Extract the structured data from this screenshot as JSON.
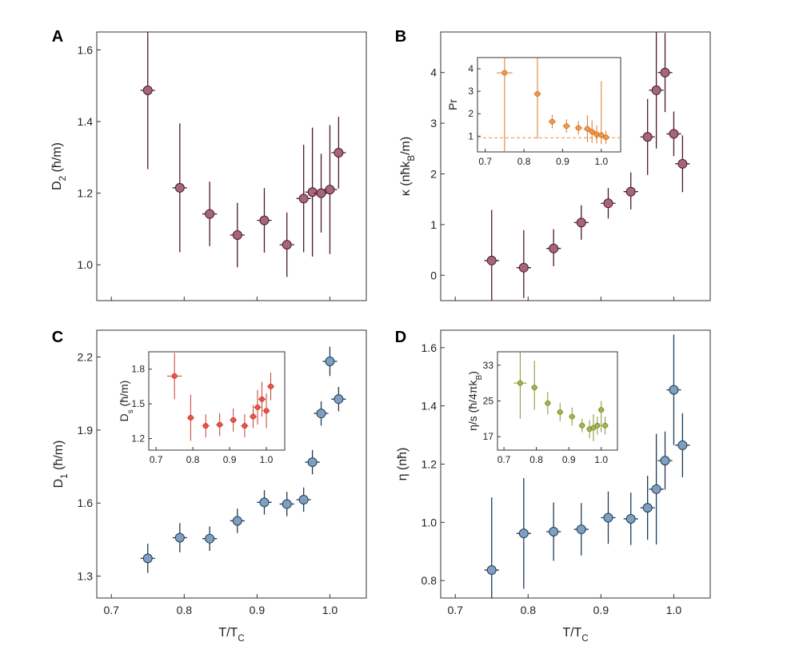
{
  "chart_data": [
    {
      "id": "A",
      "type": "scatter",
      "panel_label": "A",
      "ylabel": "D",
      "ylabel_sub": "2",
      "ylabel_unit": " (ħ/m)",
      "xlabel": "",
      "xlim": [
        0.68,
        1.05
      ],
      "ylim": [
        0.9,
        1.65
      ],
      "yticks": [
        1.0,
        1.2,
        1.4,
        1.6
      ],
      "yticklabels": [
        "1.0",
        "1.2",
        "1.4",
        "1.6"
      ],
      "xticks": [
        0.7,
        0.8,
        0.9,
        1.0
      ],
      "xticklabels": [],
      "color": "#a66679",
      "edge_color": "#4a1a2c",
      "points": [
        {
          "x": 0.75,
          "y": 1.487,
          "xerr": 0.01,
          "yerr_lo": 0.22,
          "yerr_hi": 0.17
        },
        {
          "x": 0.794,
          "y": 1.215,
          "xerr": 0.01,
          "yerr_lo": 0.18,
          "yerr_hi": 0.18
        },
        {
          "x": 0.835,
          "y": 1.142,
          "xerr": 0.01,
          "yerr_lo": 0.09,
          "yerr_hi": 0.09
        },
        {
          "x": 0.873,
          "y": 1.083,
          "xerr": 0.01,
          "yerr_lo": 0.09,
          "yerr_hi": 0.09
        },
        {
          "x": 0.91,
          "y": 1.124,
          "xerr": 0.01,
          "yerr_lo": 0.09,
          "yerr_hi": 0.09
        },
        {
          "x": 0.941,
          "y": 1.056,
          "xerr": 0.01,
          "yerr_lo": 0.09,
          "yerr_hi": 0.09
        },
        {
          "x": 0.964,
          "y": 1.185,
          "xerr": 0.01,
          "yerr_lo": 0.15,
          "yerr_hi": 0.15
        },
        {
          "x": 0.976,
          "y": 1.203,
          "xerr": 0.01,
          "yerr_lo": 0.18,
          "yerr_hi": 0.18
        },
        {
          "x": 0.988,
          "y": 1.2,
          "xerr": 0.01,
          "yerr_lo": 0.11,
          "yerr_hi": 0.11
        },
        {
          "x": 1.0,
          "y": 1.21,
          "xerr": 0.01,
          "yerr_lo": 0.18,
          "yerr_hi": 0.18
        },
        {
          "x": 1.012,
          "y": 1.313,
          "xerr": 0.01,
          "yerr_lo": 0.1,
          "yerr_hi": 0.1
        }
      ]
    },
    {
      "id": "B",
      "type": "scatter",
      "panel_label": "B",
      "ylabel": "κ (nħk",
      "ylabel_sub": "B",
      "ylabel_unit": "/m)",
      "xlabel": "",
      "xlim": [
        0.68,
        1.05
      ],
      "ylim": [
        -0.5,
        4.8
      ],
      "yticks": [
        0,
        1,
        2,
        3,
        4
      ],
      "yticklabels": [
        "0",
        "1",
        "2",
        "3",
        "4"
      ],
      "xticks": [
        0.7,
        0.8,
        0.9,
        1.0
      ],
      "xticklabels": [],
      "color": "#a66679",
      "edge_color": "#4a1a2c",
      "points": [
        {
          "x": 0.75,
          "y": 0.29,
          "xerr": 0.01,
          "yerr_lo": 0.8,
          "yerr_hi": 1.0
        },
        {
          "x": 0.794,
          "y": 0.15,
          "xerr": 0.01,
          "yerr_lo": 0.6,
          "yerr_hi": 0.74
        },
        {
          "x": 0.835,
          "y": 0.53,
          "xerr": 0.01,
          "yerr_lo": 0.35,
          "yerr_hi": 0.38
        },
        {
          "x": 0.873,
          "y": 1.04,
          "xerr": 0.01,
          "yerr_lo": 0.34,
          "yerr_hi": 0.34
        },
        {
          "x": 0.91,
          "y": 1.42,
          "xerr": 0.01,
          "yerr_lo": 0.3,
          "yerr_hi": 0.3
        },
        {
          "x": 0.941,
          "y": 1.65,
          "xerr": 0.01,
          "yerr_lo": 0.35,
          "yerr_hi": 0.38
        },
        {
          "x": 0.964,
          "y": 2.73,
          "xerr": 0.01,
          "yerr_lo": 0.75,
          "yerr_hi": 0.75
        },
        {
          "x": 0.976,
          "y": 3.65,
          "xerr": 0.01,
          "yerr_lo": 1.15,
          "yerr_hi": 1.15
        },
        {
          "x": 0.988,
          "y": 4.0,
          "xerr": 0.01,
          "yerr_lo": 0.78,
          "yerr_hi": 0.78
        },
        {
          "x": 1.0,
          "y": 2.79,
          "xerr": 0.01,
          "yerr_lo": 0.44,
          "yerr_hi": 0.44
        },
        {
          "x": 1.012,
          "y": 2.2,
          "xerr": 0.01,
          "yerr_lo": 0.56,
          "yerr_hi": 0.56
        }
      ],
      "inset": {
        "ylabel": "Pr",
        "xlim": [
          0.68,
          1.05
        ],
        "ylim": [
          0.3,
          4.5
        ],
        "yticks": [
          1,
          2,
          3,
          4
        ],
        "yticklabels": [
          "1",
          "2",
          "3",
          "4"
        ],
        "xticks": [
          0.7,
          0.8,
          0.9,
          1.0
        ],
        "xticklabels": [
          "0.7",
          "0.8",
          "0.9",
          "1.0"
        ],
        "color": "#ef9a4a",
        "edge_color": "#d4782b",
        "hline": 0.93,
        "points": [
          {
            "x": 0.75,
            "y": 3.82,
            "xerr": 0.02,
            "yerr_lo": 3.6,
            "yerr_hi": 0.7
          },
          {
            "x": 0.835,
            "y": 2.88,
            "xerr": 0.01,
            "yerr_lo": 2.0,
            "yerr_hi": 1.6
          },
          {
            "x": 0.873,
            "y": 1.65,
            "xerr": 0.01,
            "yerr_lo": 0.3,
            "yerr_hi": 0.3
          },
          {
            "x": 0.91,
            "y": 1.45,
            "xerr": 0.01,
            "yerr_lo": 0.3,
            "yerr_hi": 0.3
          },
          {
            "x": 0.941,
            "y": 1.37,
            "xerr": 0.01,
            "yerr_lo": 0.3,
            "yerr_hi": 0.3
          },
          {
            "x": 0.964,
            "y": 1.33,
            "xerr": 0.01,
            "yerr_lo": 0.6,
            "yerr_hi": 0.6
          },
          {
            "x": 0.976,
            "y": 1.2,
            "xerr": 0.01,
            "yerr_lo": 0.5,
            "yerr_hi": 0.5
          },
          {
            "x": 0.988,
            "y": 1.08,
            "xerr": 0.01,
            "yerr_lo": 0.4,
            "yerr_hi": 0.4
          },
          {
            "x": 1.0,
            "y": 1.05,
            "xerr": 0.01,
            "yerr_lo": 0.4,
            "yerr_hi": 2.4
          },
          {
            "x": 1.012,
            "y": 0.95,
            "xerr": 0.01,
            "yerr_lo": 0.3,
            "yerr_hi": 0.3
          }
        ]
      }
    },
    {
      "id": "C",
      "type": "scatter",
      "panel_label": "C",
      "ylabel": "D",
      "ylabel_sub": "1",
      "ylabel_unit": " (ħ/m)",
      "xlabel": "T/T",
      "xlabel_sub": "C",
      "xlim": [
        0.68,
        1.05
      ],
      "ylim": [
        1.21,
        2.31
      ],
      "yticks": [
        1.3,
        1.6,
        1.9,
        2.2
      ],
      "yticklabels": [
        "1.3",
        "1.6",
        "1.9",
        "2.2"
      ],
      "xticks": [
        0.7,
        0.8,
        0.9,
        1.0
      ],
      "xticklabels": [
        "0.7",
        "0.8",
        "0.9",
        "1.0"
      ],
      "color": "#7f9fc0",
      "edge_color": "#1f3b55",
      "points": [
        {
          "x": 0.75,
          "y": 1.373,
          "xerr": 0.01,
          "yerr_lo": 0.06,
          "yerr_hi": 0.06
        },
        {
          "x": 0.794,
          "y": 1.458,
          "xerr": 0.01,
          "yerr_lo": 0.06,
          "yerr_hi": 0.06
        },
        {
          "x": 0.835,
          "y": 1.454,
          "xerr": 0.01,
          "yerr_lo": 0.05,
          "yerr_hi": 0.05
        },
        {
          "x": 0.873,
          "y": 1.527,
          "xerr": 0.01,
          "yerr_lo": 0.05,
          "yerr_hi": 0.05
        },
        {
          "x": 0.91,
          "y": 1.603,
          "xerr": 0.01,
          "yerr_lo": 0.05,
          "yerr_hi": 0.05
        },
        {
          "x": 0.941,
          "y": 1.596,
          "xerr": 0.01,
          "yerr_lo": 0.05,
          "yerr_hi": 0.05
        },
        {
          "x": 0.964,
          "y": 1.614,
          "xerr": 0.01,
          "yerr_lo": 0.05,
          "yerr_hi": 0.05
        },
        {
          "x": 0.976,
          "y": 1.768,
          "xerr": 0.01,
          "yerr_lo": 0.05,
          "yerr_hi": 0.05
        },
        {
          "x": 0.988,
          "y": 1.968,
          "xerr": 0.01,
          "yerr_lo": 0.05,
          "yerr_hi": 0.05
        },
        {
          "x": 1.0,
          "y": 2.182,
          "xerr": 0.01,
          "yerr_lo": 0.06,
          "yerr_hi": 0.06
        },
        {
          "x": 1.012,
          "y": 2.027,
          "xerr": 0.01,
          "yerr_lo": 0.05,
          "yerr_hi": 0.05
        }
      ],
      "inset": {
        "ylabel": "D",
        "ylabel_sub": "s",
        "ylabel_unit": " (ħ/m)",
        "xlim": [
          0.68,
          1.05
        ],
        "ylim": [
          1.1,
          1.95
        ],
        "yticks": [
          1.2,
          1.5,
          1.8
        ],
        "yticklabels": [
          "1.2",
          "1.5",
          "1.8"
        ],
        "xticks": [
          0.7,
          0.8,
          0.9,
          1.0
        ],
        "xticklabels": [
          "0.7",
          "0.8",
          "0.9",
          "1.0"
        ],
        "color": "#e8574a",
        "edge_color": "#c93d30",
        "points": [
          {
            "x": 0.75,
            "y": 1.74,
            "xerr": 0.02,
            "yerr_lo": 0.2,
            "yerr_hi": 0.2
          },
          {
            "x": 0.794,
            "y": 1.38,
            "xerr": 0.01,
            "yerr_lo": 0.2,
            "yerr_hi": 0.2
          },
          {
            "x": 0.835,
            "y": 1.31,
            "xerr": 0.01,
            "yerr_lo": 0.1,
            "yerr_hi": 0.1
          },
          {
            "x": 0.873,
            "y": 1.32,
            "xerr": 0.01,
            "yerr_lo": 0.1,
            "yerr_hi": 0.1
          },
          {
            "x": 0.91,
            "y": 1.36,
            "xerr": 0.01,
            "yerr_lo": 0.1,
            "yerr_hi": 0.1
          },
          {
            "x": 0.941,
            "y": 1.31,
            "xerr": 0.01,
            "yerr_lo": 0.1,
            "yerr_hi": 0.1
          },
          {
            "x": 0.964,
            "y": 1.39,
            "xerr": 0.01,
            "yerr_lo": 0.1,
            "yerr_hi": 0.1
          },
          {
            "x": 0.976,
            "y": 1.47,
            "xerr": 0.01,
            "yerr_lo": 0.15,
            "yerr_hi": 0.15
          },
          {
            "x": 0.988,
            "y": 1.54,
            "xerr": 0.01,
            "yerr_lo": 0.15,
            "yerr_hi": 0.15
          },
          {
            "x": 1.0,
            "y": 1.44,
            "xerr": 0.01,
            "yerr_lo": 0.15,
            "yerr_hi": 0.15
          },
          {
            "x": 1.012,
            "y": 1.65,
            "xerr": 0.01,
            "yerr_lo": 0.12,
            "yerr_hi": 0.12
          }
        ]
      }
    },
    {
      "id": "D",
      "type": "scatter",
      "panel_label": "D",
      "ylabel": "η (nħ)",
      "ylabel_sub": "",
      "ylabel_unit": "",
      "xlabel": "T/T",
      "xlabel_sub": "C",
      "xlim": [
        0.68,
        1.05
      ],
      "ylim": [
        0.74,
        1.66
      ],
      "yticks": [
        0.8,
        1.0,
        1.2,
        1.4,
        1.6
      ],
      "yticklabels": [
        "0.8",
        "1.0",
        "1.2",
        "1.4",
        "1.6"
      ],
      "xticks": [
        0.7,
        0.8,
        0.9,
        1.0
      ],
      "xticklabels": [
        "0.7",
        "0.8",
        "0.9",
        "1.0"
      ],
      "color": "#7f9fc0",
      "edge_color": "#1f3b55",
      "points": [
        {
          "x": 0.75,
          "y": 0.836,
          "xerr": 0.01,
          "yerr_lo": 0.11,
          "yerr_hi": 0.25
        },
        {
          "x": 0.794,
          "y": 0.962,
          "xerr": 0.01,
          "yerr_lo": 0.19,
          "yerr_hi": 0.19
        },
        {
          "x": 0.835,
          "y": 0.968,
          "xerr": 0.01,
          "yerr_lo": 0.1,
          "yerr_hi": 0.1
        },
        {
          "x": 0.873,
          "y": 0.976,
          "xerr": 0.01,
          "yerr_lo": 0.09,
          "yerr_hi": 0.09
        },
        {
          "x": 0.91,
          "y": 1.016,
          "xerr": 0.01,
          "yerr_lo": 0.09,
          "yerr_hi": 0.09
        },
        {
          "x": 0.941,
          "y": 1.012,
          "xerr": 0.01,
          "yerr_lo": 0.09,
          "yerr_hi": 0.09
        },
        {
          "x": 0.964,
          "y": 1.05,
          "xerr": 0.01,
          "yerr_lo": 0.11,
          "yerr_hi": 0.11
        },
        {
          "x": 0.976,
          "y": 1.114,
          "xerr": 0.01,
          "yerr_lo": 0.19,
          "yerr_hi": 0.19
        },
        {
          "x": 0.988,
          "y": 1.212,
          "xerr": 0.01,
          "yerr_lo": 0.1,
          "yerr_hi": 0.1
        },
        {
          "x": 1.0,
          "y": 1.455,
          "xerr": 0.01,
          "yerr_lo": 0.19,
          "yerr_hi": 0.19
        },
        {
          "x": 1.012,
          "y": 1.265,
          "xerr": 0.01,
          "yerr_lo": 0.11,
          "yerr_hi": 0.11
        }
      ],
      "inset": {
        "ylabel": "η/s (ħ/4πk",
        "ylabel_sub": "B",
        "ylabel_unit": ")",
        "xlim": [
          0.68,
          1.05
        ],
        "ylim": [
          14,
          36
        ],
        "yticks": [
          17,
          25,
          33
        ],
        "yticklabels": [
          "17",
          "25",
          "33"
        ],
        "xticks": [
          0.7,
          0.8,
          0.9,
          1.0
        ],
        "xticklabels": [
          "0.7",
          "0.8",
          "0.9",
          "1.0"
        ],
        "color": "#a4b552",
        "edge_color": "#7f9232",
        "points": [
          {
            "x": 0.75,
            "y": 29.0,
            "xerr": 0.02,
            "yerr_lo": 8.0,
            "yerr_hi": 7.0
          },
          {
            "x": 0.794,
            "y": 28.0,
            "xerr": 0.01,
            "yerr_lo": 5.0,
            "yerr_hi": 6.0
          },
          {
            "x": 0.835,
            "y": 24.5,
            "xerr": 0.01,
            "yerr_lo": 2.5,
            "yerr_hi": 2.5
          },
          {
            "x": 0.873,
            "y": 22.5,
            "xerr": 0.01,
            "yerr_lo": 2.0,
            "yerr_hi": 2.0
          },
          {
            "x": 0.91,
            "y": 21.5,
            "xerr": 0.01,
            "yerr_lo": 2.0,
            "yerr_hi": 2.0
          },
          {
            "x": 0.941,
            "y": 19.5,
            "xerr": 0.01,
            "yerr_lo": 1.5,
            "yerr_hi": 1.5
          },
          {
            "x": 0.964,
            "y": 18.7,
            "xerr": 0.01,
            "yerr_lo": 2.0,
            "yerr_hi": 2.0
          },
          {
            "x": 0.976,
            "y": 19.0,
            "xerr": 0.01,
            "yerr_lo": 3.0,
            "yerr_hi": 3.0
          },
          {
            "x": 0.988,
            "y": 19.5,
            "xerr": 0.01,
            "yerr_lo": 2.0,
            "yerr_hi": 2.0
          },
          {
            "x": 1.0,
            "y": 23.0,
            "xerr": 0.01,
            "yerr_lo": 5.0,
            "yerr_hi": 2.0
          },
          {
            "x": 1.012,
            "y": 19.5,
            "xerr": 0.01,
            "yerr_lo": 2.0,
            "yerr_hi": 2.0
          }
        ]
      }
    }
  ]
}
